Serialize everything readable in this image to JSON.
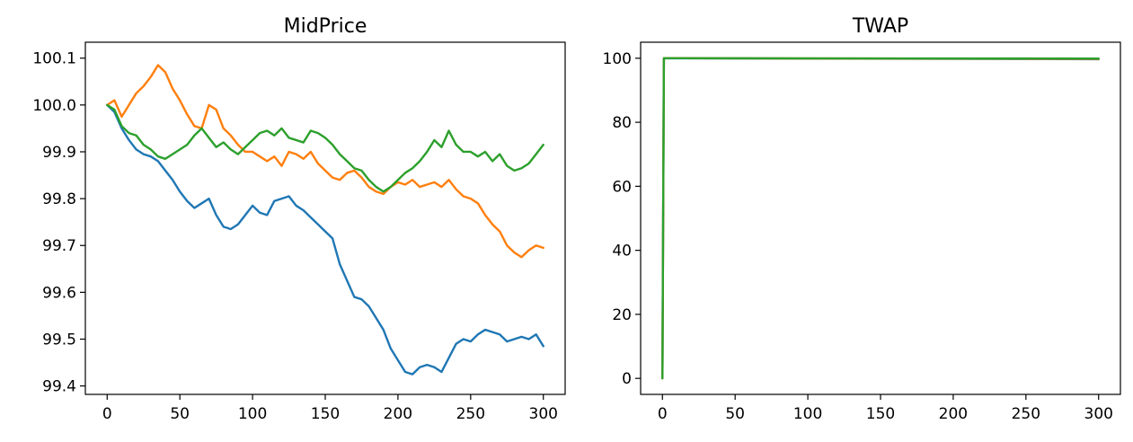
{
  "chart_data": [
    {
      "type": "line",
      "title": "MidPrice",
      "xlabel": "",
      "ylabel": "",
      "xlim": [
        -15,
        315
      ],
      "ylim": [
        99.382,
        100.134
      ],
      "xticks": [
        0,
        50,
        100,
        150,
        200,
        250,
        300
      ],
      "yticks": [
        99.4,
        99.5,
        99.6,
        99.7,
        99.8,
        99.9,
        100.0,
        100.1
      ],
      "ytick_labels": [
        "99.4",
        "99.5",
        "99.6",
        "99.7",
        "99.8",
        "99.9",
        "100.0",
        "100.1"
      ],
      "grid": false,
      "series": [
        {
          "color": "#1f77b4",
          "x": [
            0,
            5,
            10,
            15,
            20,
            25,
            30,
            35,
            40,
            45,
            50,
            55,
            60,
            65,
            70,
            75,
            80,
            85,
            90,
            95,
            100,
            105,
            110,
            115,
            120,
            125,
            130,
            135,
            140,
            145,
            150,
            155,
            160,
            165,
            170,
            175,
            180,
            185,
            190,
            195,
            200,
            205,
            210,
            215,
            220,
            225,
            230,
            235,
            240,
            245,
            250,
            255,
            260,
            265,
            270,
            275,
            280,
            285,
            290,
            295,
            300
          ],
          "values": [
            100.0,
            99.985,
            99.95,
            99.925,
            99.905,
            99.895,
            99.89,
            99.88,
            99.86,
            99.84,
            99.815,
            99.795,
            99.78,
            99.79,
            99.8,
            99.765,
            99.74,
            99.735,
            99.745,
            99.765,
            99.785,
            99.77,
            99.765,
            99.795,
            99.8,
            99.805,
            99.785,
            99.775,
            99.76,
            99.745,
            99.73,
            99.715,
            99.66,
            99.625,
            99.59,
            99.585,
            99.57,
            99.545,
            99.52,
            99.48,
            99.455,
            99.43,
            99.425,
            99.44,
            99.445,
            99.44,
            99.43,
            99.46,
            99.49,
            99.5,
            99.495,
            99.51,
            99.52,
            99.515,
            99.51,
            99.495,
            99.5,
            99.505,
            99.5,
            99.51,
            99.485
          ]
        },
        {
          "color": "#ff7f0e",
          "x": [
            0,
            5,
            10,
            15,
            20,
            25,
            30,
            35,
            40,
            45,
            50,
            55,
            60,
            65,
            70,
            75,
            80,
            85,
            90,
            95,
            100,
            105,
            110,
            115,
            120,
            125,
            130,
            135,
            140,
            145,
            150,
            155,
            160,
            165,
            170,
            175,
            180,
            185,
            190,
            195,
            200,
            205,
            210,
            215,
            220,
            225,
            230,
            235,
            240,
            245,
            250,
            255,
            260,
            265,
            270,
            275,
            280,
            285,
            290,
            295,
            300
          ],
          "values": [
            100.0,
            100.01,
            99.975,
            100.0,
            100.025,
            100.04,
            100.06,
            100.085,
            100.07,
            100.035,
            100.01,
            99.98,
            99.955,
            99.95,
            100.0,
            99.99,
            99.95,
            99.935,
            99.915,
            99.9,
            99.9,
            99.89,
            99.88,
            99.89,
            99.87,
            99.9,
            99.895,
            99.885,
            99.9,
            99.875,
            99.86,
            99.845,
            99.84,
            99.855,
            99.86,
            99.845,
            99.825,
            99.815,
            99.81,
            99.825,
            99.835,
            99.83,
            99.84,
            99.825,
            99.83,
            99.835,
            99.825,
            99.84,
            99.82,
            99.805,
            99.8,
            99.79,
            99.765,
            99.745,
            99.73,
            99.7,
            99.685,
            99.675,
            99.69,
            99.7,
            99.695
          ]
        },
        {
          "color": "#2ca02c",
          "x": [
            0,
            5,
            10,
            15,
            20,
            25,
            30,
            35,
            40,
            45,
            50,
            55,
            60,
            65,
            70,
            75,
            80,
            85,
            90,
            95,
            100,
            105,
            110,
            115,
            120,
            125,
            130,
            135,
            140,
            145,
            150,
            155,
            160,
            165,
            170,
            175,
            180,
            185,
            190,
            195,
            200,
            205,
            210,
            215,
            220,
            225,
            230,
            235,
            240,
            245,
            250,
            255,
            260,
            265,
            270,
            275,
            280,
            285,
            290,
            295,
            300
          ],
          "values": [
            100.0,
            99.99,
            99.955,
            99.94,
            99.935,
            99.915,
            99.905,
            99.89,
            99.885,
            99.895,
            99.905,
            99.915,
            99.935,
            99.95,
            99.93,
            99.91,
            99.92,
            99.905,
            99.895,
            99.91,
            99.925,
            99.94,
            99.945,
            99.935,
            99.95,
            99.93,
            99.925,
            99.92,
            99.945,
            99.94,
            99.93,
            99.915,
            99.895,
            99.88,
            99.865,
            99.86,
            99.84,
            99.825,
            99.815,
            99.825,
            99.84,
            99.855,
            99.865,
            99.88,
            99.9,
            99.925,
            99.91,
            99.945,
            99.915,
            99.9,
            99.9,
            99.89,
            99.9,
            99.88,
            99.895,
            99.87,
            99.86,
            99.865,
            99.875,
            99.895,
            99.915
          ]
        }
      ]
    },
    {
      "type": "line",
      "title": "TWAP",
      "xlabel": "",
      "ylabel": "",
      "xlim": [
        -15,
        315
      ],
      "ylim": [
        -5,
        105
      ],
      "xticks": [
        0,
        50,
        100,
        150,
        200,
        250,
        300
      ],
      "yticks": [
        0,
        20,
        40,
        60,
        80,
        100
      ],
      "ytick_labels": [
        "0",
        "20",
        "40",
        "60",
        "80",
        "100"
      ],
      "grid": false,
      "series": [
        {
          "color": "#1f77b4",
          "x": [
            0,
            1,
            300
          ],
          "values": [
            0,
            100.0,
            99.7
          ]
        },
        {
          "color": "#ff7f0e",
          "x": [
            0,
            1,
            300
          ],
          "values": [
            0,
            100.0,
            99.8
          ]
        },
        {
          "color": "#2ca02c",
          "x": [
            0,
            1,
            300
          ],
          "values": [
            0,
            100.0,
            99.9
          ]
        }
      ]
    }
  ]
}
